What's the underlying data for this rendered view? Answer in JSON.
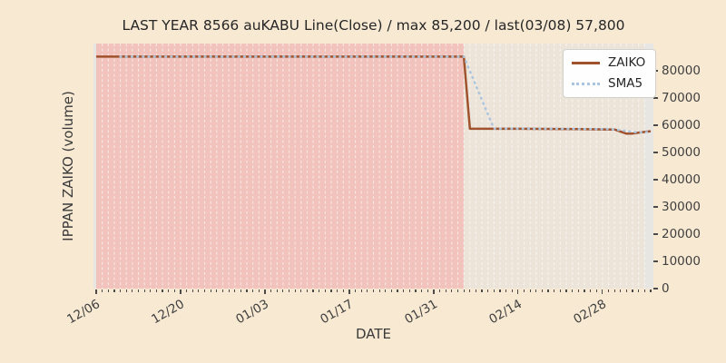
{
  "chart_data": {
    "type": "line",
    "title": "LAST YEAR 8566 auKABU Line(Close) / max 85,200 / last(03/08) 57,800",
    "xlabel": "DATE",
    "ylabel": "IPPAN ZAIKO (volume)",
    "ylim": [
      0,
      90000
    ],
    "y_ticks": [
      0,
      10000,
      20000,
      30000,
      40000,
      50000,
      60000,
      70000,
      80000
    ],
    "x_tick_labels": [
      "12/06",
      "12/20",
      "01/03",
      "01/17",
      "01/31",
      "02/14",
      "02/28"
    ],
    "x_tick_interval_days": 14,
    "x_start": "12/06",
    "x_end": "03/08",
    "days_total": 92,
    "grid": "daily vertical white dashed lines, no horizontal grid",
    "max_value": 85200,
    "last_value": 57800,
    "last_date": "03/08",
    "spans": [
      {
        "from": "12/06",
        "to": "02/05",
        "color": "#f1c3bc",
        "name": "pre-drop-span"
      },
      {
        "from": "02/05",
        "to": "03/07",
        "color": "#ece4d9",
        "name": "post-drop-span"
      }
    ],
    "series": [
      {
        "name": "ZAIKO",
        "color": "#a0522d",
        "style": "solid",
        "points": [
          [
            "12/06",
            85200
          ],
          [
            "12/20",
            85200
          ],
          [
            "01/03",
            85200
          ],
          [
            "01/17",
            85200
          ],
          [
            "01/31",
            85200
          ],
          [
            "02/05",
            85200
          ],
          [
            "02/06",
            58700
          ],
          [
            "02/14",
            58700
          ],
          [
            "02/24",
            58600
          ],
          [
            "03/02",
            58450
          ],
          [
            "03/04",
            56900
          ],
          [
            "03/05",
            56950
          ],
          [
            "03/06",
            57300
          ],
          [
            "03/08",
            57800
          ]
        ]
      },
      {
        "name": "SMA5",
        "color": "#a9c5df",
        "style": "dotted",
        "points": [
          [
            "12/10",
            85200
          ],
          [
            "12/20",
            85200
          ],
          [
            "01/03",
            85200
          ],
          [
            "01/17",
            85200
          ],
          [
            "01/31",
            85200
          ],
          [
            "02/05",
            85200
          ],
          [
            "02/06",
            79900
          ],
          [
            "02/07",
            74600
          ],
          [
            "02/08",
            69300
          ],
          [
            "02/09",
            64000
          ],
          [
            "02/10",
            58760
          ],
          [
            "02/20",
            58700
          ],
          [
            "03/01",
            58550
          ],
          [
            "03/03",
            58200
          ],
          [
            "03/05",
            57500
          ],
          [
            "03/06",
            57350
          ],
          [
            "03/08",
            57550
          ]
        ]
      }
    ],
    "legend": {
      "position": "upper-right",
      "entries": [
        {
          "label": "ZAIKO",
          "color": "#a0522d",
          "style": "solid"
        },
        {
          "label": "SMA5",
          "color": "#a9c5df",
          "style": "dotted"
        }
      ]
    }
  },
  "style": {
    "figure_bg": "#f8e9d3",
    "axes_bg": "#e8e6e3",
    "grid_color": "rgba(255,255,255,0.6)",
    "tick_color": "#4a4a4a",
    "text_color": "#3f3f3f"
  }
}
